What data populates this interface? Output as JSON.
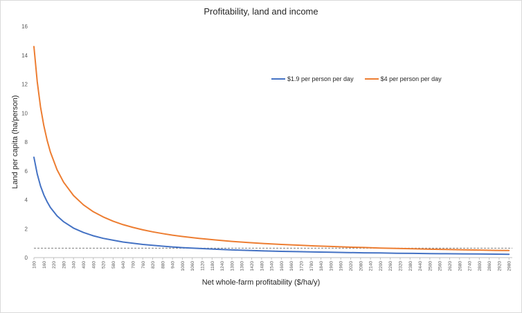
{
  "chart_data": {
    "type": "line",
    "title": "Profitability, land and income",
    "xlabel": "Net whole-farm profitability ($/ha/y)",
    "ylabel": "Land per capita (ha/person)",
    "ylim": [
      0,
      16
    ],
    "yticks": [
      0,
      2,
      4,
      6,
      8,
      10,
      12,
      14,
      16
    ],
    "xlim": [
      100,
      3000
    ],
    "xtick_start": 100,
    "xtick_step": 60,
    "xtick_end": 2980,
    "grid": false,
    "legend_position": "top-right",
    "reference_line": {
      "y": 0.65,
      "style": "dashed",
      "color": "#7f7f7f"
    },
    "series": [
      {
        "name": "$1.9 per person per day",
        "color": "#4472c4",
        "x": [
          100,
          120,
          140,
          160,
          180,
          200,
          240,
          280,
          340,
          400,
          460,
          520,
          580,
          640,
          700,
          760,
          820,
          880,
          940,
          1000,
          1100,
          1200,
          1300,
          1400,
          1500,
          1600,
          1700,
          1800,
          1900,
          2000,
          2100,
          2200,
          2300,
          2400,
          2500,
          2600,
          2700,
          2800,
          2900,
          2980
        ],
        "values": [
          6.94,
          5.78,
          4.96,
          4.34,
          3.86,
          3.47,
          2.89,
          2.48,
          2.04,
          1.74,
          1.51,
          1.33,
          1.2,
          1.08,
          0.99,
          0.91,
          0.85,
          0.79,
          0.74,
          0.69,
          0.63,
          0.58,
          0.53,
          0.5,
          0.46,
          0.43,
          0.41,
          0.39,
          0.37,
          0.35,
          0.33,
          0.32,
          0.3,
          0.29,
          0.28,
          0.27,
          0.26,
          0.25,
          0.24,
          0.23
        ]
      },
      {
        "name": "$4 per person per day",
        "color": "#ed7d31",
        "x": [
          100,
          120,
          140,
          160,
          180,
          200,
          240,
          280,
          340,
          400,
          460,
          520,
          580,
          640,
          700,
          760,
          820,
          880,
          940,
          1000,
          1100,
          1200,
          1300,
          1400,
          1500,
          1600,
          1700,
          1800,
          1900,
          2000,
          2100,
          2200,
          2300,
          2400,
          2500,
          2600,
          2700,
          2800,
          2900,
          2980
        ],
        "values": [
          14.6,
          12.17,
          10.43,
          9.13,
          8.11,
          7.3,
          6.08,
          5.21,
          4.29,
          3.65,
          3.17,
          2.81,
          2.52,
          2.28,
          2.09,
          1.92,
          1.78,
          1.66,
          1.55,
          1.46,
          1.33,
          1.22,
          1.12,
          1.04,
          0.97,
          0.91,
          0.86,
          0.81,
          0.77,
          0.73,
          0.7,
          0.66,
          0.63,
          0.61,
          0.58,
          0.56,
          0.54,
          0.52,
          0.5,
          0.49
        ]
      }
    ]
  }
}
